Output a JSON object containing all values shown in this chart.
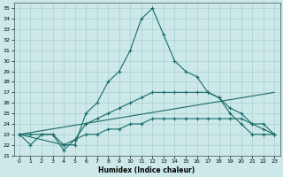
{
  "xlabel": "Humidex (Indice chaleur)",
  "bg_color": "#cce8e8",
  "grid_color": "#aad0d0",
  "line_color": "#1a6b6b",
  "xlim": [
    -0.5,
    23.5
  ],
  "ylim": [
    21,
    35.5
  ],
  "xticks": [
    0,
    1,
    2,
    3,
    4,
    5,
    6,
    7,
    8,
    9,
    10,
    11,
    12,
    13,
    14,
    15,
    16,
    17,
    18,
    19,
    20,
    21,
    22,
    23
  ],
  "yticks": [
    21,
    22,
    23,
    24,
    25,
    26,
    27,
    28,
    29,
    30,
    31,
    32,
    33,
    34,
    35
  ],
  "line1_x": [
    0,
    1,
    2,
    3,
    4,
    5,
    6,
    7,
    8,
    9,
    10,
    11,
    12,
    13,
    14,
    15,
    16,
    17,
    18,
    19,
    20,
    21,
    22,
    23
  ],
  "line1_y": [
    23,
    23,
    23,
    23,
    22,
    22,
    25,
    26,
    28,
    29,
    31,
    34,
    35,
    32.5,
    30,
    29,
    28.5,
    27,
    26.5,
    25,
    24,
    23,
    23,
    23
  ],
  "line2_x": [
    0,
    1,
    2,
    3,
    4,
    5,
    6,
    7,
    8,
    9,
    10,
    11,
    12,
    13,
    14,
    15,
    16,
    17,
    18,
    19,
    20,
    21,
    22,
    23
  ],
  "line2_y": [
    23,
    22,
    23,
    23,
    21.5,
    22.5,
    24,
    24.5,
    25,
    25.5,
    26,
    26.5,
    27,
    27,
    27,
    27,
    27,
    27,
    26.5,
    25.5,
    25,
    24,
    23.5,
    23
  ],
  "line3_x": [
    0,
    23
  ],
  "line3_y": [
    23,
    27
  ],
  "line4_x": [
    0,
    4,
    5,
    6,
    7,
    8,
    9,
    10,
    11,
    12,
    13,
    14,
    15,
    16,
    17,
    18,
    19,
    20,
    21,
    22,
    23
  ],
  "line4_y": [
    23,
    22,
    22.5,
    23,
    23,
    23.5,
    23.5,
    24,
    24,
    24.5,
    24.5,
    24.5,
    24.5,
    24.5,
    24.5,
    24.5,
    24.5,
    24.5,
    24,
    24,
    23
  ]
}
